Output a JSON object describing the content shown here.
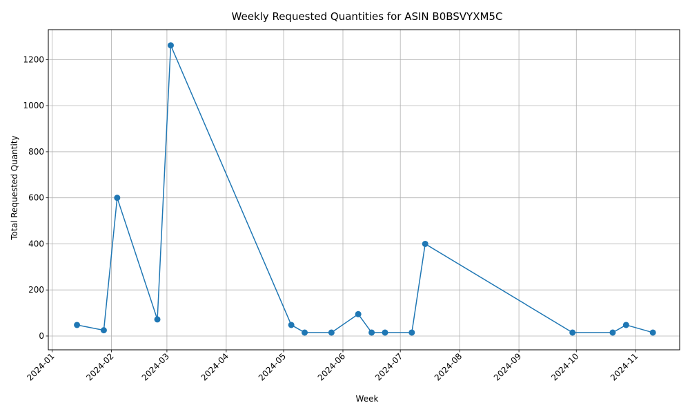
{
  "chart_data": {
    "type": "line",
    "title": "Weekly Requested Quantities for ASIN B0BSVYXM5C",
    "xlabel": "Week",
    "ylabel": "Total Requested Quantity",
    "x_axis_type": "date",
    "xlim": [
      "2023-12-30",
      "2024-11-24"
    ],
    "ylim": [
      -60,
      1330
    ],
    "x_ticks": [
      "2024-01",
      "2024-02",
      "2024-03",
      "2024-04",
      "2024-05",
      "2024-06",
      "2024-07",
      "2024-08",
      "2024-09",
      "2024-10",
      "2024-11"
    ],
    "y_ticks": [
      0,
      200,
      400,
      600,
      800,
      1000,
      1200
    ],
    "grid": true,
    "line_color": "#1f77b4",
    "marker": "circle",
    "series": [
      {
        "x": [
          "2024-01-14",
          "2024-01-28",
          "2024-02-04",
          "2024-02-25",
          "2024-03-03",
          "2024-05-05",
          "2024-05-12",
          "2024-05-26",
          "2024-06-09",
          "2024-06-16",
          "2024-06-23",
          "2024-07-07",
          "2024-07-14",
          "2024-09-29",
          "2024-10-20",
          "2024-10-27",
          "2024-11-10"
        ],
        "values": [
          48,
          25,
          600,
          72,
          1262,
          48,
          15,
          15,
          95,
          15,
          15,
          15,
          400,
          15,
          15,
          48,
          15
        ]
      }
    ]
  }
}
